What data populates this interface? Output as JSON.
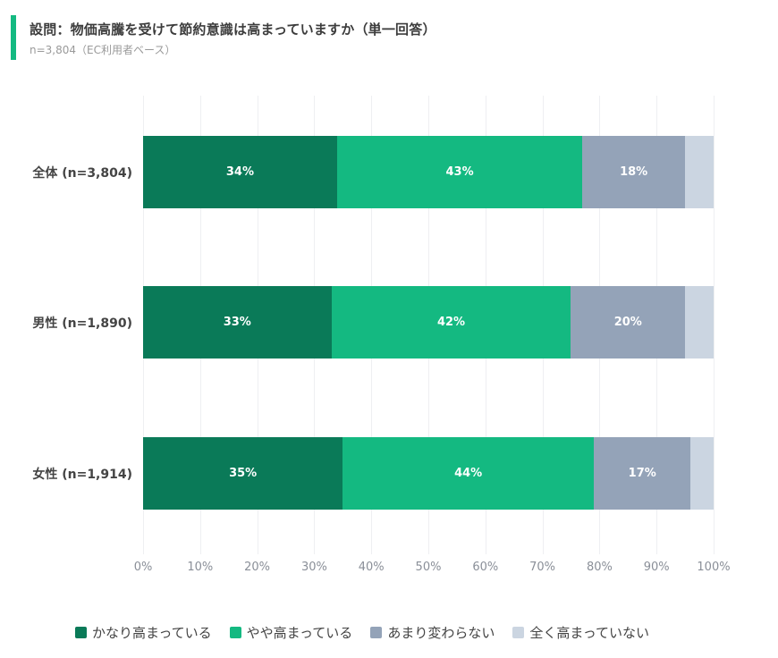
{
  "header": {
    "title": "設問：物価高騰を受けて節約意識は高まっていますか（単一回答）",
    "subtitle": "n=3,804（EC利用者ベース）",
    "accent_color": "#14b981"
  },
  "chart_data": {
    "type": "bar",
    "orientation": "horizontal",
    "stacked": true,
    "title": "設問：物価高騰を受けて節約意識は高まっていますか（単一回答）",
    "subtitle": "n=3,804（EC利用者ベース）",
    "xlabel": "",
    "ylabel": "",
    "xlim": [
      0,
      100
    ],
    "x_ticks": [
      "0%",
      "10%",
      "20%",
      "30%",
      "40%",
      "50%",
      "60%",
      "70%",
      "80%",
      "90%",
      "100%"
    ],
    "grid": true,
    "legend_position": "bottom",
    "categories": [
      "全体 (n=3,804)",
      "男性 (n=1,890)",
      "女性 (n=1,914)"
    ],
    "series": [
      {
        "name": "かなり高まっている",
        "color": "#0a7a58",
        "values": [
          34,
          33,
          35
        ],
        "labels": [
          "34%",
          "33%",
          "35%"
        ]
      },
      {
        "name": "やや高まっている",
        "color": "#14b981",
        "values": [
          43,
          42,
          44
        ],
        "labels": [
          "43%",
          "42%",
          "44%"
        ]
      },
      {
        "name": "あまり変わらない",
        "color": "#94a3b8",
        "values": [
          18,
          20,
          17
        ],
        "labels": [
          "18%",
          "20%",
          "17%"
        ]
      },
      {
        "name": "全く高まっていない",
        "color": "#cbd5e1",
        "values": [
          5,
          5,
          4
        ],
        "labels": [
          "",
          "",
          ""
        ]
      }
    ]
  }
}
